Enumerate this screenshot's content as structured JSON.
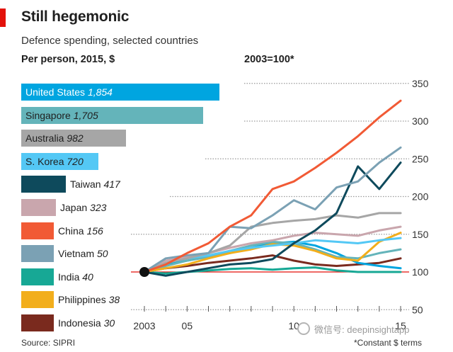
{
  "header": {
    "title": "Still hegemonic",
    "subtitle": "Defence spending, selected countries",
    "left_caption": "Per person, 2015, $",
    "right_caption": "2003=100*"
  },
  "footer": {
    "source": "Source: SIPRI",
    "footnote": "*Constant $ terms",
    "watermark": "微信号: deepinsightapp"
  },
  "chart_data": [
    {
      "type": "bar",
      "orientation": "horizontal",
      "title": "Per person, 2015, $",
      "categories": [
        "United States",
        "Singapore",
        "Australia",
        "S. Korea",
        "Taiwan",
        "Japan",
        "China",
        "Vietnam",
        "India",
        "Philippines",
        "Indonesia"
      ],
      "values": [
        1854,
        1705,
        982,
        720,
        417,
        323,
        156,
        50,
        40,
        38,
        30
      ],
      "colors": [
        "#00a5e0",
        "#64b4ba",
        "#a6a6a6",
        "#54c8f5",
        "#0e4a5c",
        "#c9a6ad",
        "#f15a35",
        "#7ba1b4",
        "#17a895",
        "#f2ae1c",
        "#7a2a1e"
      ]
    },
    {
      "type": "line",
      "title": "2003=100*",
      "x": [
        2003,
        2004,
        2005,
        2006,
        2007,
        2008,
        2009,
        2010,
        2011,
        2012,
        2013,
        2014,
        2015
      ],
      "x_tick_labels": [
        "2003",
        "05",
        "10",
        "15"
      ],
      "x_tick_values": [
        2003,
        2005,
        2010,
        2015
      ],
      "y_ticks": [
        50,
        100,
        150,
        200,
        250,
        300,
        350
      ],
      "ylim": [
        50,
        350
      ],
      "grid": "horizontal dotted",
      "series": [
        {
          "name": "China",
          "color": "#f15a35",
          "values": [
            100,
            110,
            125,
            138,
            160,
            175,
            210,
            220,
            238,
            258,
            280,
            305,
            327
          ]
        },
        {
          "name": "Vietnam",
          "color": "#7ba1b4",
          "values": [
            100,
            118,
            122,
            125,
            160,
            158,
            175,
            195,
            183,
            212,
            220,
            245,
            265
          ]
        },
        {
          "name": "Taiwan",
          "color": "#0e4a5c",
          "values": [
            100,
            95,
            100,
            105,
            110,
            112,
            117,
            138,
            155,
            178,
            240,
            210,
            245
          ]
        },
        {
          "name": "Australia",
          "color": "#a6a6a6",
          "values": [
            100,
            112,
            118,
            125,
            135,
            160,
            165,
            168,
            170,
            175,
            172,
            178,
            178
          ]
        },
        {
          "name": "Japan",
          "color": "#c9a6ad",
          "values": [
            100,
            115,
            120,
            125,
            132,
            138,
            142,
            148,
            152,
            150,
            148,
            155,
            160
          ]
        },
        {
          "name": "S. Korea",
          "color": "#54c8f5",
          "values": [
            100,
            112,
            118,
            122,
            128,
            132,
            135,
            138,
            142,
            140,
            138,
            142,
            145
          ]
        },
        {
          "name": "Philippines",
          "color": "#f2ae1c",
          "values": [
            100,
            105,
            110,
            118,
            125,
            130,
            137,
            135,
            128,
            118,
            115,
            140,
            152
          ]
        },
        {
          "name": "Singapore",
          "color": "#64b4ba",
          "values": [
            100,
            108,
            115,
            120,
            128,
            135,
            140,
            138,
            130,
            120,
            118,
            125,
            130
          ]
        },
        {
          "name": "United States",
          "color": "#00a5e0",
          "values": [
            100,
            110,
            115,
            120,
            125,
            132,
            138,
            140,
            135,
            125,
            112,
            108,
            105
          ]
        },
        {
          "name": "Indonesia",
          "color": "#7a2a1e",
          "values": [
            100,
            105,
            108,
            112,
            115,
            118,
            122,
            115,
            110,
            108,
            110,
            112,
            118
          ]
        },
        {
          "name": "India",
          "color": "#17a895",
          "values": [
            100,
            98,
            100,
            102,
            104,
            105,
            103,
            105,
            106,
            102,
            100,
            100,
            100
          ]
        }
      ]
    }
  ]
}
